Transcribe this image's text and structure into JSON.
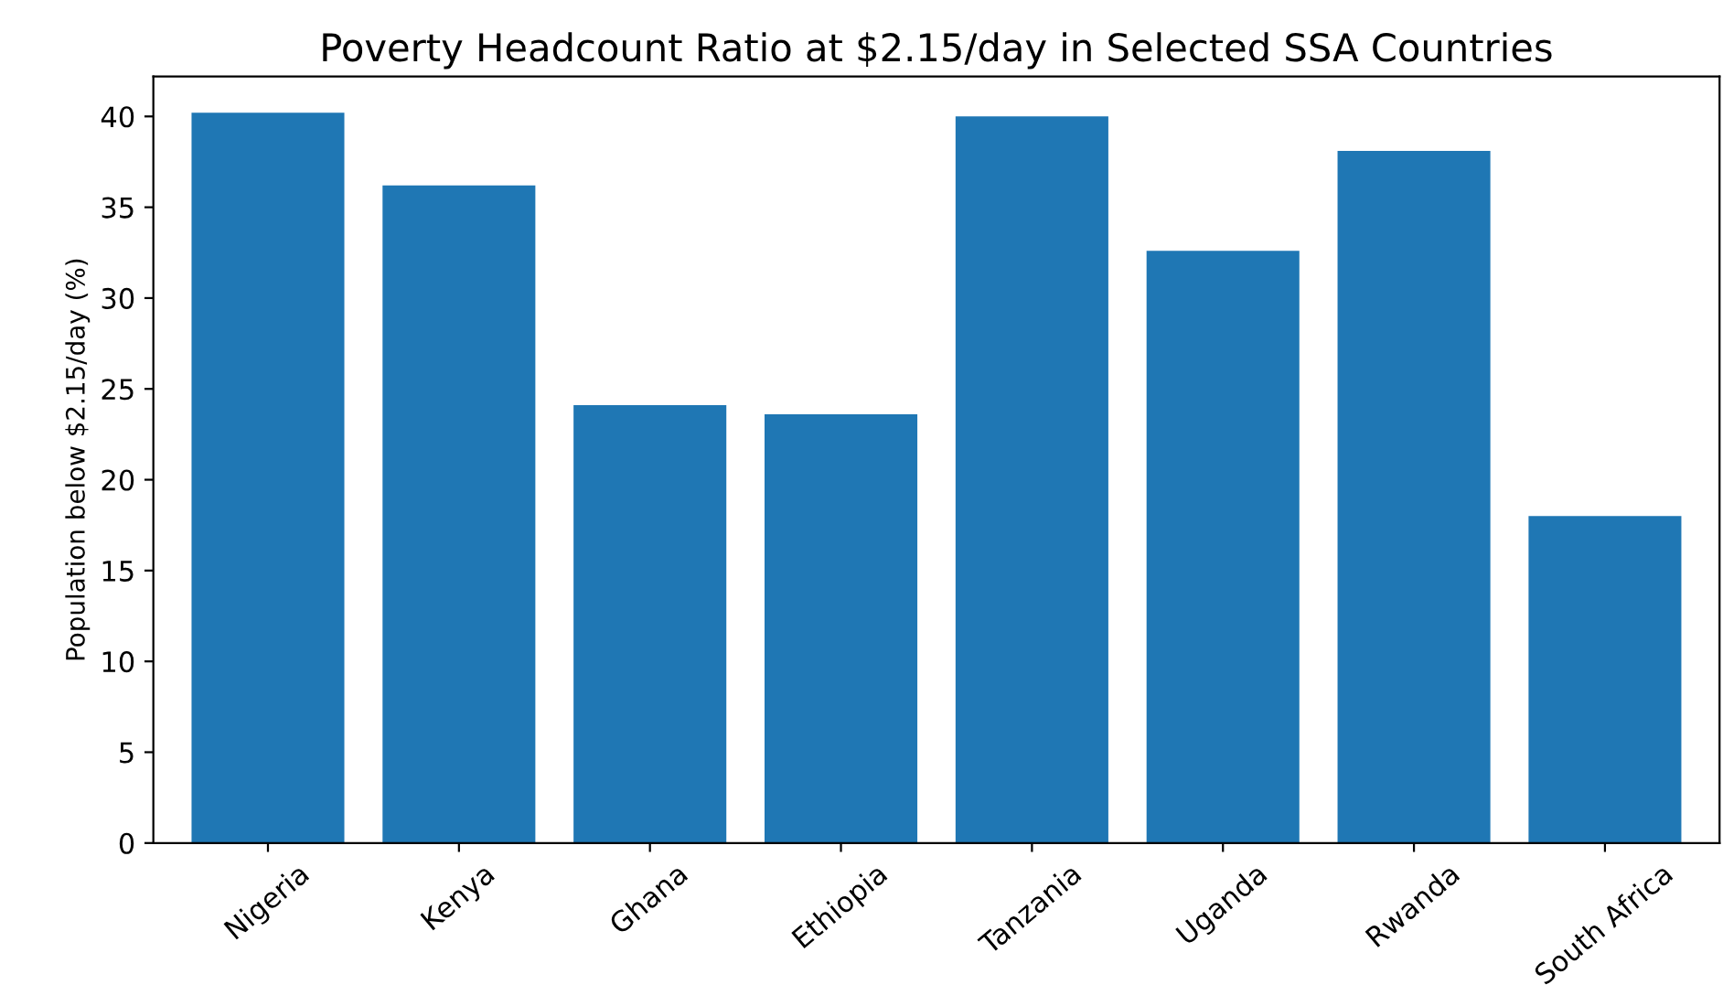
{
  "chart_data": {
    "type": "bar",
    "title": "Poverty Headcount Ratio at $2.15/day in Selected SSA Countries",
    "ylabel": "Population below $2.15/day (%)",
    "categories": [
      "Nigeria",
      "Kenya",
      "Ghana",
      "Ethiopia",
      "Tanzania",
      "Uganda",
      "Rwanda",
      "South Africa"
    ],
    "values": [
      40.2,
      36.2,
      24.1,
      23.6,
      40.0,
      32.6,
      38.1,
      18.0
    ],
    "color": "#1f77b4",
    "ylim": [
      0,
      42.2
    ],
    "yticks": [
      0,
      5,
      10,
      15,
      20,
      25,
      30,
      35,
      40
    ],
    "grid": false
  }
}
